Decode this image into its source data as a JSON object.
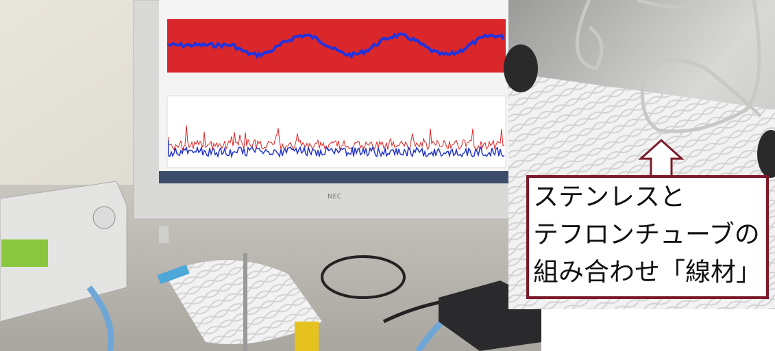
{
  "monitor": {
    "brand": "NEC"
  },
  "annotation": {
    "lines": [
      "ステンレスと",
      "テフロンチューブの",
      "組み合わせ「線材」"
    ]
  }
}
